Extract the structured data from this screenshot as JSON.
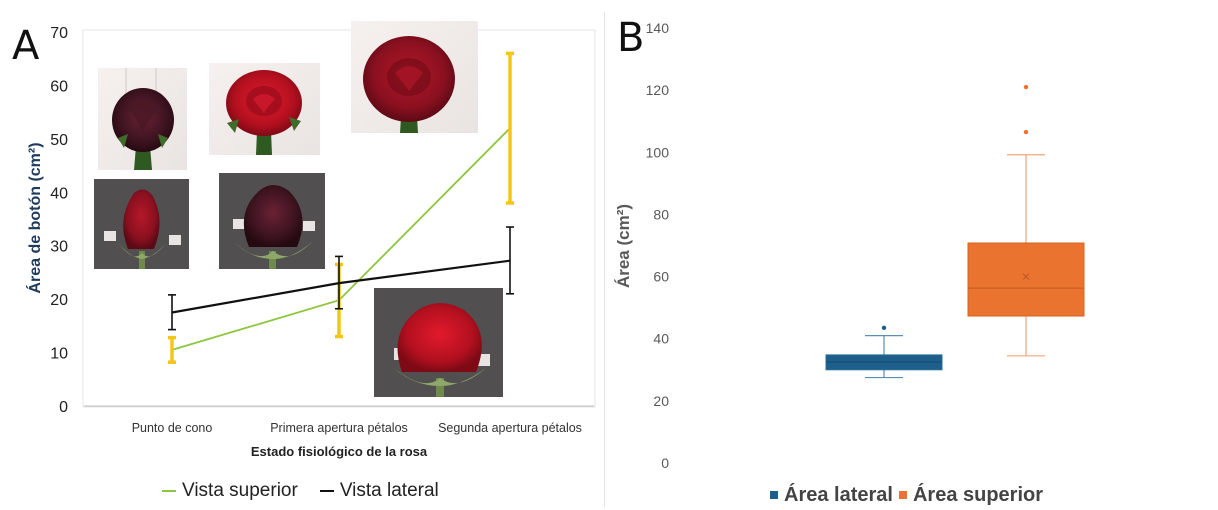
{
  "figure": {
    "panels": [
      "A",
      "B"
    ]
  },
  "colors": {
    "vista_superior": "#8dc63f",
    "vista_lateral": "#111111",
    "errorbar_superior": "#f5c518",
    "area_lateral": "#1d5f8a",
    "area_superior": "#ea7330",
    "axis_title_a": "#1f3a5c"
  },
  "chart_data": [
    {
      "panel": "A",
      "type": "line",
      "xlabel": "Estado fisiológico de la rosa",
      "ylabel": "Área de botón (cm²)",
      "categories": [
        "Punto de cono",
        "Primera apertura pétalos",
        "Segunda apertura pétalos"
      ],
      "ylim": [
        0,
        70
      ],
      "yticks": [
        0,
        10,
        20,
        30,
        40,
        50,
        60,
        70
      ],
      "grid": false,
      "legend_position": "bottom",
      "series": [
        {
          "name": "Vista superior",
          "color": "#8dc63f",
          "values": [
            10.5,
            19.8,
            52
          ],
          "error_low": [
            8.2,
            13.0,
            38.0
          ],
          "error_high": [
            12.8,
            26.5,
            66.0
          ],
          "errorbar_color": "#f5c518"
        },
        {
          "name": "Vista lateral",
          "color": "#111111",
          "values": [
            17.5,
            23.0,
            27.2
          ],
          "error_low": [
            14.3,
            18.2,
            21.0
          ],
          "error_high": [
            20.8,
            28.0,
            33.5
          ],
          "errorbar_color": "#111111"
        }
      ],
      "images": [
        "rose-photo-superior-cono",
        "rose-photo-superior-primera",
        "rose-photo-superior-segunda",
        "rose-photo-lateral-cono",
        "rose-photo-lateral-primera",
        "rose-photo-lateral-segunda"
      ]
    },
    {
      "panel": "B",
      "type": "box",
      "ylabel": "Área (cm²)",
      "ylim": [
        0,
        140
      ],
      "yticks": [
        0,
        20,
        40,
        60,
        80,
        100,
        120,
        140
      ],
      "grid": false,
      "legend_position": "bottom",
      "series": [
        {
          "name": "Área lateral",
          "color": "#1d5f8a",
          "whisker_low": 27.5,
          "q1": 30.0,
          "median": 32.5,
          "q3": 34.8,
          "whisker_high": 41.0,
          "outliers": [
            43.5
          ]
        },
        {
          "name": "Área superior",
          "color": "#ea7330",
          "whisker_low": 34.5,
          "q1": 47.3,
          "median": 56.3,
          "mean": 60.0,
          "q3": 70.8,
          "whisker_high": 99.2,
          "outliers": [
            106.5,
            121.0
          ]
        }
      ]
    }
  ]
}
